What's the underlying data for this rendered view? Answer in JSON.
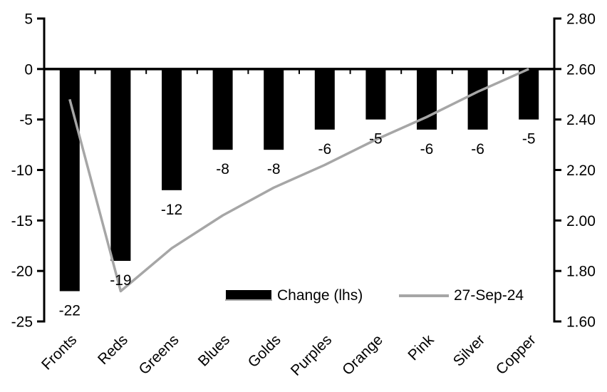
{
  "chart_data": {
    "type": "bar",
    "subtype": "combo-bar-line-dual-axis",
    "title": "",
    "categories": [
      "Fronts",
      "Reds",
      "Greens",
      "Blues",
      "Golds",
      "Purples",
      "Orange",
      "Pink",
      "Silver",
      "Copper"
    ],
    "series": [
      {
        "name": "Change (lhs)",
        "type": "bar",
        "axis": "left",
        "color": "#000000",
        "values": [
          -22,
          -19,
          -12,
          -8,
          -8,
          -6,
          -5,
          -6,
          -6,
          -5
        ],
        "data_labels": [
          "-22",
          "-19",
          "-12",
          "-8",
          "-8",
          "-6",
          "-5",
          "-6",
          "-6",
          "-5"
        ]
      },
      {
        "name": "27-Sep-24",
        "type": "line",
        "axis": "right",
        "color": "#a6a6a6",
        "values": [
          2.48,
          1.72,
          1.89,
          2.02,
          2.13,
          2.22,
          2.32,
          2.41,
          2.51,
          2.6
        ]
      }
    ],
    "left_axis": {
      "min": -25,
      "max": 5,
      "tick_labels": [
        "5",
        "0",
        "-5",
        "-10",
        "-15",
        "-20",
        "-25"
      ]
    },
    "right_axis": {
      "min": 1.6,
      "max": 2.8,
      "tick_labels": [
        "2.80",
        "2.60",
        "2.40",
        "2.20",
        "2.00",
        "1.80",
        "1.60"
      ]
    },
    "grid": false,
    "legend": {
      "position": "bottom-inside",
      "entries": [
        {
          "label": "Change (lhs)",
          "swatch": "bar",
          "color": "#000000"
        },
        {
          "label": "27-Sep-24",
          "swatch": "line",
          "color": "#a6a6a6"
        }
      ]
    },
    "colors": {
      "axis": "#000000",
      "bar": "#000000",
      "line": "#a6a6a6",
      "background": "#ffffff"
    }
  }
}
